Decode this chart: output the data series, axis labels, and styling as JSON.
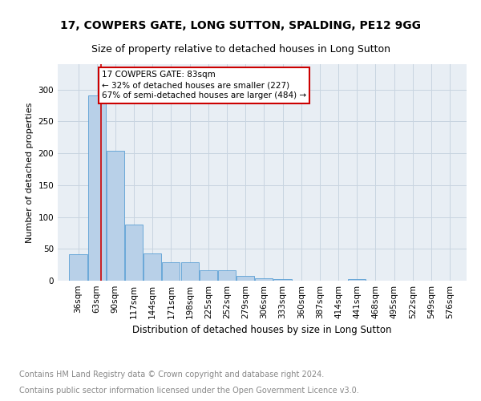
{
  "title1": "17, COWPERS GATE, LONG SUTTON, SPALDING, PE12 9GG",
  "title2": "Size of property relative to detached houses in Long Sutton",
  "xlabel": "Distribution of detached houses by size in Long Sutton",
  "ylabel": "Number of detached properties",
  "bin_labels": [
    "36sqm",
    "63sqm",
    "90sqm",
    "117sqm",
    "144sqm",
    "171sqm",
    "198sqm",
    "225sqm",
    "252sqm",
    "279sqm",
    "306sqm",
    "333sqm",
    "360sqm",
    "387sqm",
    "414sqm",
    "441sqm",
    "468sqm",
    "495sqm",
    "522sqm",
    "549sqm",
    "576sqm"
  ],
  "bin_edges": [
    36,
    63,
    90,
    117,
    144,
    171,
    198,
    225,
    252,
    279,
    306,
    333,
    360,
    387,
    414,
    441,
    468,
    495,
    522,
    549,
    576
  ],
  "bar_heights": [
    41,
    291,
    204,
    88,
    43,
    29,
    29,
    16,
    16,
    8,
    4,
    2,
    0,
    0,
    0,
    3,
    0,
    0,
    0,
    0
  ],
  "bar_color": "#b8d0e8",
  "bar_edge_color": "#5a9fd4",
  "property_size": 83,
  "red_line_color": "#cc0000",
  "annotation_line1": "17 COWPERS GATE: 83sqm",
  "annotation_line2": "← 32% of detached houses are smaller (227)",
  "annotation_line3": "67% of semi-detached houses are larger (484) →",
  "annotation_box_color": "#cc0000",
  "ylim": [
    0,
    340
  ],
  "yticks": [
    0,
    50,
    100,
    150,
    200,
    250,
    300
  ],
  "grid_color": "#c8d4e0",
  "bg_color": "#e8eef4",
  "footer_line1": "Contains HM Land Registry data © Crown copyright and database right 2024.",
  "footer_line2": "Contains public sector information licensed under the Open Government Licence v3.0.",
  "title1_fontsize": 10,
  "title2_fontsize": 9,
  "xlabel_fontsize": 8.5,
  "ylabel_fontsize": 8,
  "tick_fontsize": 7.5,
  "annotation_fontsize": 7.5,
  "footer_fontsize": 7
}
